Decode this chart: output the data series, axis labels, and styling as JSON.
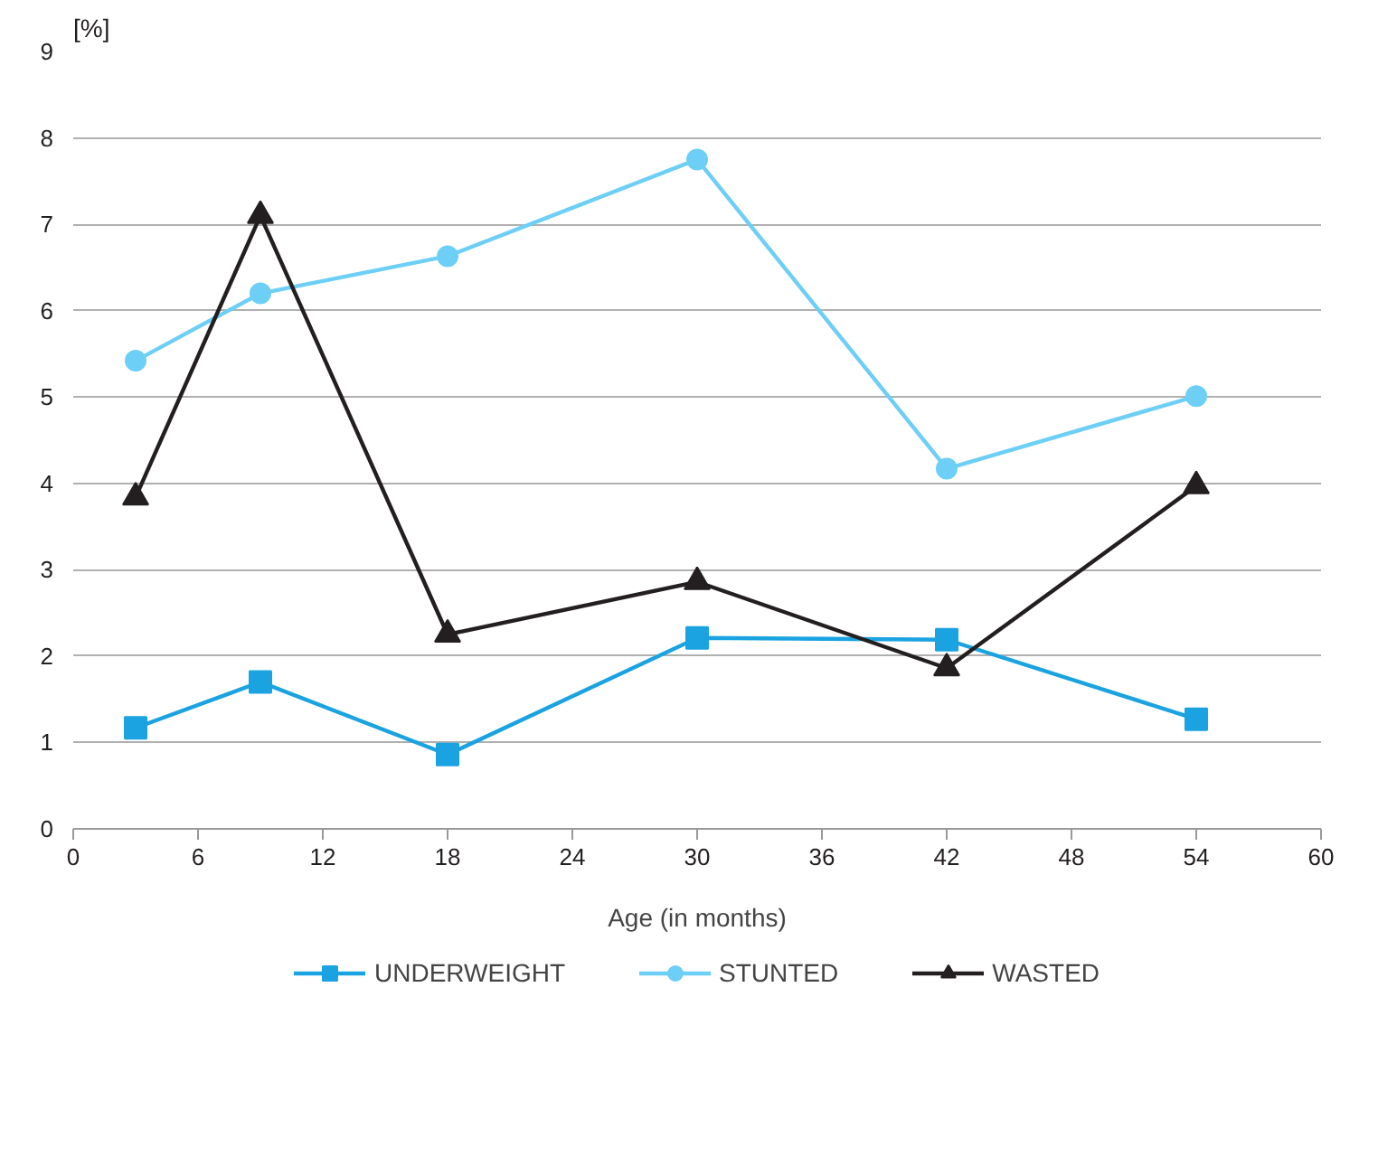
{
  "chart_data": {
    "type": "line",
    "xlabel": "Age (in months)",
    "ylabel": "[%]",
    "x": [
      3,
      9,
      18,
      30,
      42,
      54
    ],
    "xlim": [
      0,
      60
    ],
    "xticks": [
      0,
      6,
      12,
      18,
      24,
      30,
      36,
      42,
      48,
      54,
      60
    ],
    "ylim": [
      0,
      9
    ],
    "yticks": [
      0,
      1,
      2,
      3,
      4,
      5,
      6,
      7,
      8,
      9
    ],
    "grid": "y",
    "legend": "bottom",
    "line_style": "solid",
    "series": [
      {
        "name": "UNDERWEIGHT",
        "color": "#1aa3e0",
        "marker": "square",
        "values": [
          1.17,
          1.7,
          0.86,
          2.21,
          2.19,
          1.27
        ]
      },
      {
        "name": "STUNTED",
        "color": "#6dcff6",
        "marker": "circle",
        "values": [
          5.42,
          6.2,
          6.63,
          7.75,
          4.17,
          5.01
        ]
      },
      {
        "name": "WASTED",
        "color": "#231f20",
        "marker": "triangle",
        "values": [
          3.84,
          7.1,
          2.25,
          2.86,
          1.86,
          3.97
        ]
      }
    ]
  }
}
